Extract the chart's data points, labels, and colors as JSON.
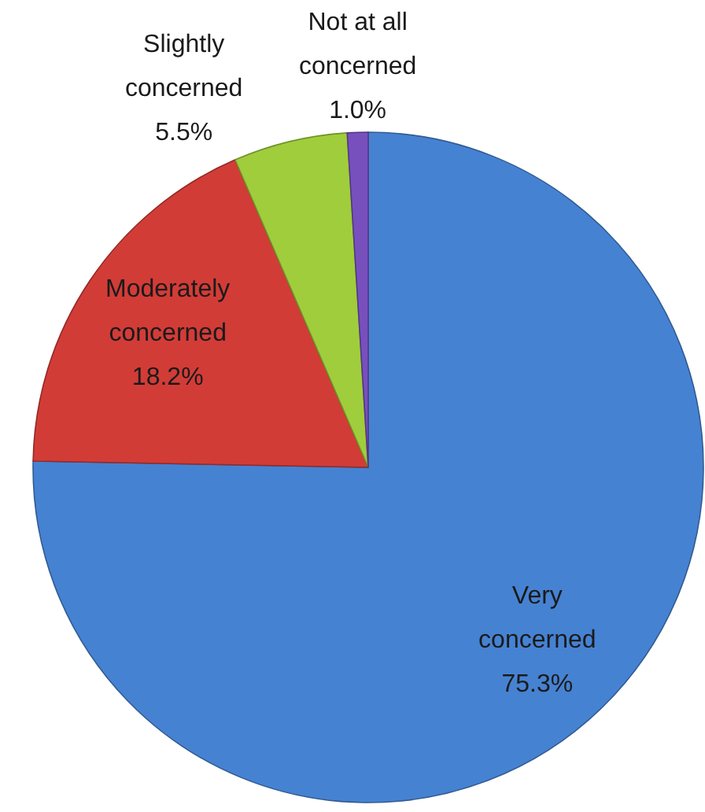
{
  "chart_data": {
    "type": "pie",
    "categories": [
      "Very concerned",
      "Moderately concerned",
      "Slightly concerned",
      "Not at all concerned"
    ],
    "values": [
      75.3,
      18.2,
      5.5,
      1.0
    ],
    "colors": [
      "#4682d2",
      "#d23c37",
      "#a0cd3c",
      "#7850be"
    ],
    "value_labels": [
      "75.3%",
      "18.2%",
      "5.5%",
      "1.0%"
    ]
  }
}
